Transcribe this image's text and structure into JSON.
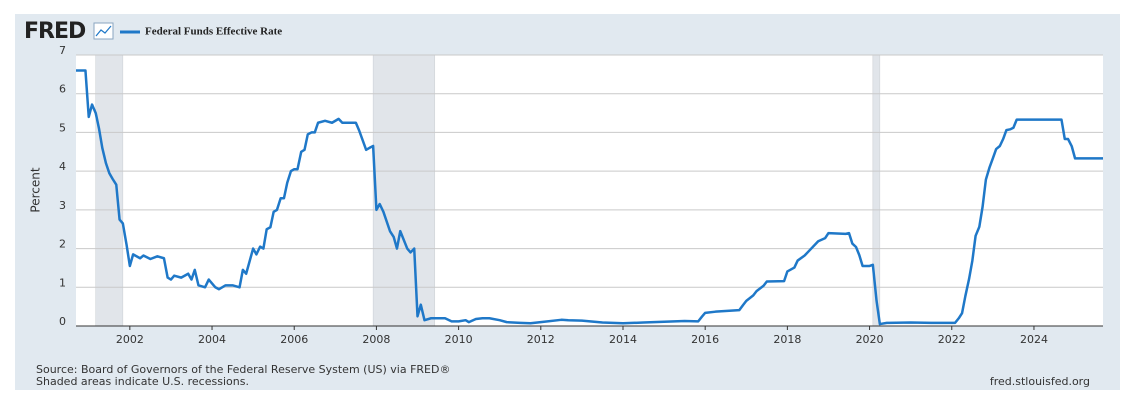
{
  "chart_data": {
    "type": "line",
    "logo": "FRED",
    "y_label": "Percent",
    "source": "Source: Board of Governors of the Federal Reserve System (US) via FRED®",
    "note": "Shaded areas indicate U.S. recessions.",
    "url": "fred.stlouisfed.org",
    "xlim": [
      2000.69,
      2025.68
    ],
    "xticks": [
      2002,
      2004,
      2006,
      2008,
      2010,
      2012,
      2014,
      2016,
      2018,
      2020,
      2022,
      2024
    ],
    "ylim": [
      0,
      7
    ],
    "yticks": [
      0,
      1,
      2,
      3,
      4,
      5,
      6,
      7
    ],
    "grid": true,
    "recessions": [
      [
        2001.17,
        2001.83
      ],
      [
        2007.92,
        2009.42
      ],
      [
        2020.08,
        2020.25
      ]
    ],
    "x": [
      2000.69,
      2000.92,
      2001.0,
      2001.08,
      2001.17,
      2001.25,
      2001.33,
      2001.42,
      2001.5,
      2001.58,
      2001.67,
      2001.75,
      2001.83,
      2001.92,
      2002.0,
      2002.08,
      2002.25,
      2002.33,
      2002.5,
      2002.67,
      2002.83,
      2002.92,
      2003.0,
      2003.08,
      2003.25,
      2003.42,
      2003.5,
      2003.58,
      2003.67,
      2003.83,
      2003.92,
      2004.08,
      2004.17,
      2004.33,
      2004.5,
      2004.67,
      2004.75,
      2004.83,
      2005.0,
      2005.08,
      2005.17,
      2005.25,
      2005.33,
      2005.42,
      2005.5,
      2005.58,
      2005.67,
      2005.75,
      2005.83,
      2005.92,
      2006.0,
      2006.08,
      2006.17,
      2006.25,
      2006.33,
      2006.42,
      2006.5,
      2006.58,
      2006.75,
      2006.92,
      2007.08,
      2007.17,
      2007.5,
      2007.58,
      2007.75,
      2007.83,
      2007.92,
      2008.0,
      2008.08,
      2008.17,
      2008.33,
      2008.42,
      2008.5,
      2008.58,
      2008.75,
      2008.83,
      2008.92,
      2009.0,
      2009.08,
      2009.17,
      2009.33,
      2009.42,
      2009.67,
      2009.83,
      2010.0,
      2010.17,
      2010.25,
      2010.42,
      2010.58,
      2010.75,
      2011.0,
      2011.17,
      2011.5,
      2011.75,
      2012.0,
      2012.5,
      2012.67,
      2013.0,
      2013.5,
      2014.0,
      2014.5,
      2015.0,
      2015.5,
      2015.83,
      2015.92,
      2016.0,
      2016.25,
      2016.83,
      2016.92,
      2017.0,
      2017.17,
      2017.25,
      2017.42,
      2017.5,
      2017.92,
      2018.0,
      2018.17,
      2018.25,
      2018.42,
      2018.5,
      2018.75,
      2018.92,
      2019.0,
      2019.42,
      2019.5,
      2019.58,
      2019.67,
      2019.75,
      2019.83,
      2020.0,
      2020.08,
      2020.17,
      2020.25,
      2020.42,
      2021.0,
      2021.5,
      2021.92,
      2022.08,
      2022.17,
      2022.25,
      2022.33,
      2022.42,
      2022.5,
      2022.58,
      2022.67,
      2022.75,
      2022.83,
      2022.92,
      2023.0,
      2023.08,
      2023.17,
      2023.25,
      2023.33,
      2023.42,
      2023.5,
      2023.58,
      2024.67,
      2024.75,
      2024.83,
      2024.92,
      2025.0,
      2025.68
    ],
    "series": [
      {
        "name": "Federal Funds Effective Rate",
        "color": "#1f78c8",
        "values": [
          6.6,
          6.6,
          5.4,
          5.72,
          5.5,
          5.1,
          4.6,
          4.2,
          3.95,
          3.8,
          3.65,
          2.75,
          2.65,
          2.1,
          1.55,
          1.85,
          1.75,
          1.82,
          1.73,
          1.8,
          1.75,
          1.25,
          1.2,
          1.3,
          1.25,
          1.35,
          1.2,
          1.45,
          1.05,
          1.0,
          1.2,
          1.0,
          0.95,
          1.05,
          1.05,
          1.0,
          1.45,
          1.35,
          2.0,
          1.85,
          2.05,
          2.0,
          2.5,
          2.55,
          2.95,
          3.0,
          3.3,
          3.3,
          3.7,
          4.0,
          4.05,
          4.05,
          4.5,
          4.55,
          4.95,
          5.0,
          5.0,
          5.25,
          5.3,
          5.25,
          5.35,
          5.25,
          5.25,
          5.05,
          4.55,
          4.6,
          4.65,
          3.0,
          3.15,
          2.95,
          2.45,
          2.3,
          2.0,
          2.45,
          2.0,
          1.9,
          2.0,
          0.25,
          0.55,
          0.15,
          0.2,
          0.2,
          0.2,
          0.12,
          0.12,
          0.15,
          0.1,
          0.18,
          0.2,
          0.2,
          0.15,
          0.1,
          0.08,
          0.07,
          0.1,
          0.16,
          0.15,
          0.14,
          0.09,
          0.07,
          0.09,
          0.11,
          0.13,
          0.12,
          0.24,
          0.34,
          0.37,
          0.41,
          0.54,
          0.65,
          0.79,
          0.9,
          1.04,
          1.15,
          1.16,
          1.41,
          1.51,
          1.69,
          1.82,
          1.91,
          2.19,
          2.27,
          2.4,
          2.38,
          2.4,
          2.13,
          2.04,
          1.83,
          1.55,
          1.55,
          1.58,
          0.65,
          0.05,
          0.08,
          0.09,
          0.08,
          0.08,
          0.08,
          0.2,
          0.33,
          0.77,
          1.21,
          1.68,
          2.33,
          2.56,
          3.08,
          3.78,
          4.1,
          4.33,
          4.57,
          4.65,
          4.83,
          5.06,
          5.08,
          5.12,
          5.33,
          5.33,
          4.83,
          4.83,
          4.64,
          4.33,
          4.33
        ]
      }
    ]
  }
}
